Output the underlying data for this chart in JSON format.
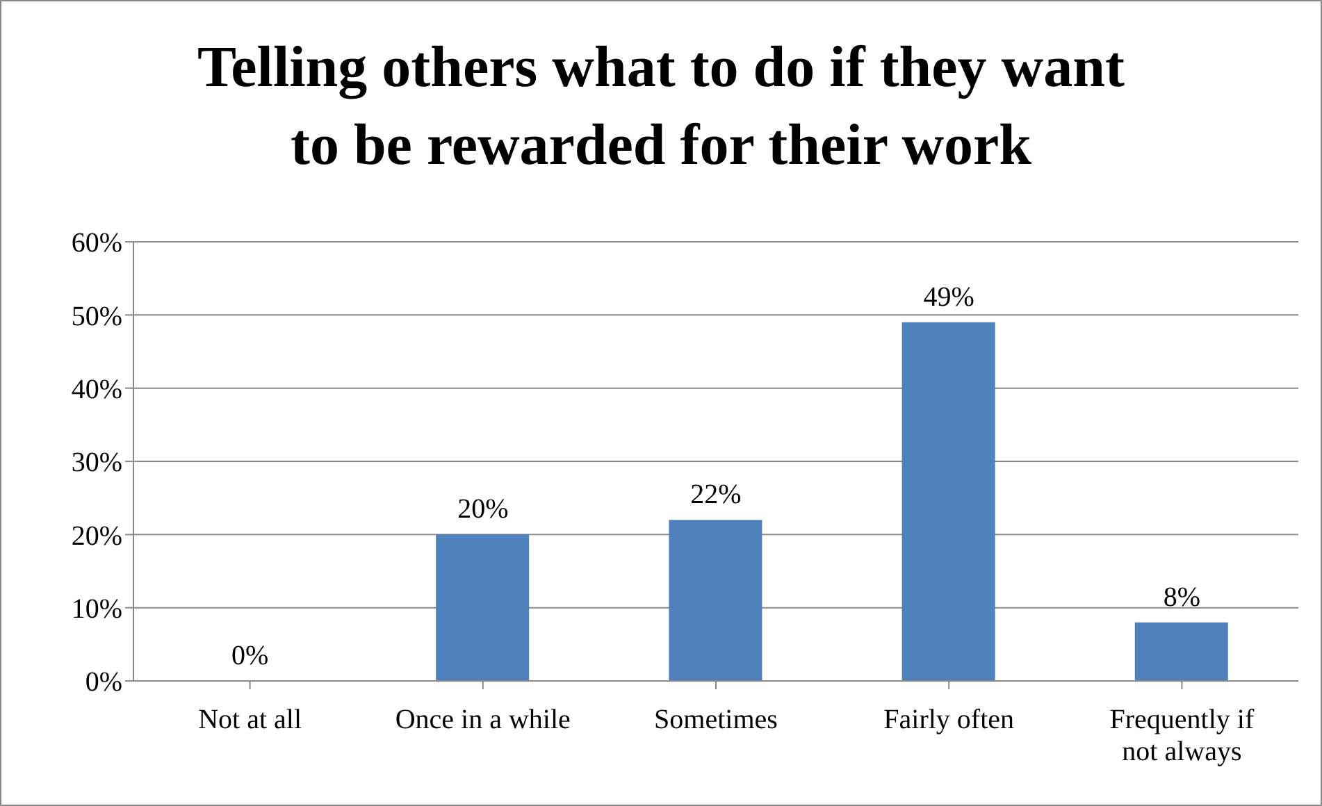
{
  "chart_data": {
    "type": "bar",
    "title": "Telling others what to do if they want to be rewarded for their work",
    "categories": [
      "Not at all",
      "Once in a while",
      "Sometimes",
      "Fairly often",
      "Frequently if not always"
    ],
    "values": [
      0,
      20,
      22,
      49,
      8
    ],
    "value_labels": [
      "0%",
      "20%",
      "22%",
      "49%",
      "8%"
    ],
    "color": "#4f81bd",
    "ylim": [
      0,
      60
    ],
    "yticks": [
      {
        "value": 0,
        "label": "0%"
      },
      {
        "value": 10,
        "label": "10%"
      },
      {
        "value": 20,
        "label": "20%"
      },
      {
        "value": 30,
        "label": "30%"
      },
      {
        "value": 40,
        "label": "40%"
      },
      {
        "value": 50,
        "label": "50%"
      },
      {
        "value": 60,
        "label": "60%"
      }
    ],
    "grid": "y",
    "legend": false
  }
}
